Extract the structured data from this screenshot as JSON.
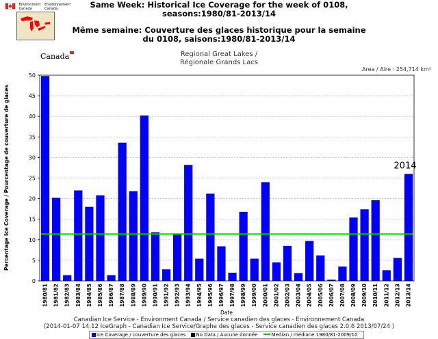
{
  "header": {
    "dept_en": [
      "Environment",
      "Canada"
    ],
    "dept_fr": [
      "Environnement",
      "Canada"
    ],
    "wordmark": "Canada"
  },
  "chart_data": {
    "type": "bar",
    "title_en": "Same Week: Historical Ice Coverage for the week of 0108, seasons:1980/81-2013/14",
    "title_fr": "Même semaine: Couverture des glaces historique pour la semaine du 0108, saisons:1980/81-2013/14",
    "subtitle": [
      "Regional Great Lakes /",
      "Régionale Grands Lacs"
    ],
    "area_label": "Area / Aire : 254,714 km²",
    "xlabel": "Date",
    "ylabel": "Percentage Ice Coverage / Pourcentage de couverture de glaces",
    "ylim": [
      0,
      50
    ],
    "yticks": [
      0,
      5,
      10,
      15,
      20,
      25,
      30,
      35,
      40,
      45,
      50
    ],
    "grid": true,
    "categories": [
      "1980/81",
      "1981/82",
      "1982/83",
      "1983/84",
      "1984/85",
      "1985/86",
      "1986/87",
      "1987/88",
      "1988/89",
      "1989/90",
      "1990/91",
      "1991/92",
      "1992/93",
      "1993/94",
      "1994/95",
      "1995/96",
      "1996/97",
      "1997/98",
      "1998/99",
      "1999/00",
      "2000/01",
      "2001/02",
      "2002/03",
      "2003/04",
      "2004/05",
      "2005/06",
      "2006/07",
      "2007/08",
      "2008/09",
      "2009/10",
      "2010/11",
      "2011/12",
      "2012/13",
      "2013/14"
    ],
    "values": [
      49.8,
      20.2,
      1.4,
      22.0,
      18.0,
      20.8,
      1.4,
      33.6,
      21.8,
      40.2,
      11.8,
      2.8,
      11.4,
      28.2,
      5.4,
      21.2,
      8.4,
      2.0,
      16.8,
      5.4,
      24.0,
      4.5,
      8.5,
      1.9,
      9.7,
      6.2,
      0.3,
      3.5,
      15.4,
      17.4,
      19.6,
      2.6,
      5.6,
      26.0
    ],
    "median": 11.4,
    "annotation": {
      "category": "2013/14",
      "text": "2014"
    },
    "colors": {
      "bar": "#0000ff",
      "median": "#00cc00",
      "grid": "#bbbbbb"
    },
    "legend": {
      "placement": "bottom",
      "items": [
        {
          "label": "Ice Coverage / couverture des glaces",
          "color": "#0000ff",
          "kind": "box"
        },
        {
          "label": "No Data / Aucune donnée",
          "color": "#000000",
          "kind": "box"
        },
        {
          "label": "Median / médiane 1980/81-2009/10",
          "color": "#00cc00",
          "kind": "line"
        }
      ]
    }
  },
  "footer": {
    "line1": "Canadian Ice Service - Environment Canada / Service canadien des glaces - Environnement Canada",
    "line2": "(2014-01-07 14:12 IceGraph - Canadian Ice Service/Graphe des glaces - Service canadien des glaces 2.0.6 2013/07/24 )"
  }
}
